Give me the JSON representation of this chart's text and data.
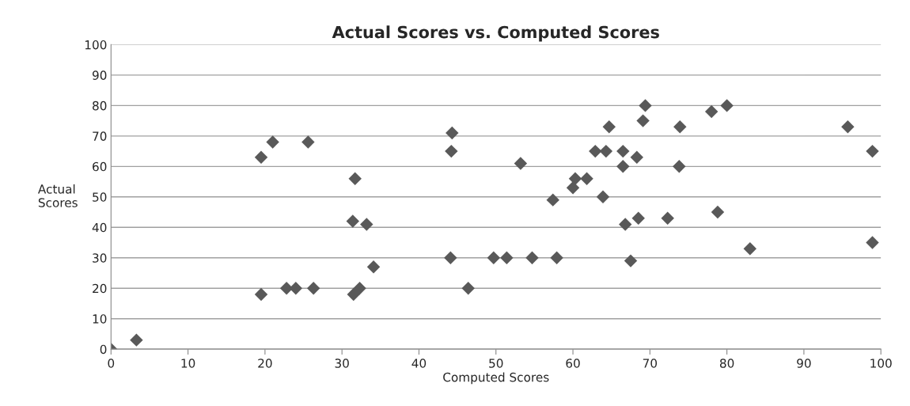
{
  "chart_data": {
    "type": "scatter",
    "title": "Actual Scores vs. Computed Scores",
    "xlabel": "Computed Scores",
    "ylabel": "Actual\nScores",
    "x": [
      0,
      3.3,
      19.5,
      21,
      25.6,
      19.5,
      22.8,
      24,
      26.3,
      31.7,
      31.4,
      33.2,
      34.1,
      31.5,
      32.3,
      44.3,
      44.2,
      44.1,
      46.4,
      49.7,
      51.4,
      54.7,
      57.9,
      53.2,
      57.4,
      60,
      60.3,
      61.8,
      62.9,
      64.3,
      64.7,
      63.9,
      66.5,
      66.5,
      66.8,
      67.5,
      68.3,
      68.5,
      69.1,
      69.4,
      72.3,
      73.9,
      73.8,
      78,
      80,
      78.8,
      83,
      95.7,
      98.9,
      98.9
    ],
    "values": [
      0,
      3,
      63,
      68,
      68,
      18,
      20,
      20,
      20,
      56,
      42,
      41,
      27,
      18,
      20,
      71,
      65,
      30,
      20,
      30,
      30,
      30,
      30,
      61,
      49,
      53,
      56,
      56,
      65,
      65,
      73,
      50,
      65,
      60,
      41,
      29,
      63,
      43,
      75,
      80,
      43,
      73,
      60,
      78,
      80,
      45,
      33,
      73,
      65,
      35
    ],
    "color": "#595959",
    "marker": "diamond",
    "grid": "y",
    "xlim": [
      0,
      100
    ],
    "xticks": [
      0,
      10,
      20,
      30,
      40,
      50,
      60,
      70,
      80,
      90,
      100
    ],
    "ylim": [
      0,
      100
    ],
    "yticks": [
      0,
      10,
      20,
      30,
      40,
      50,
      60,
      70,
      80,
      90,
      100
    ]
  }
}
